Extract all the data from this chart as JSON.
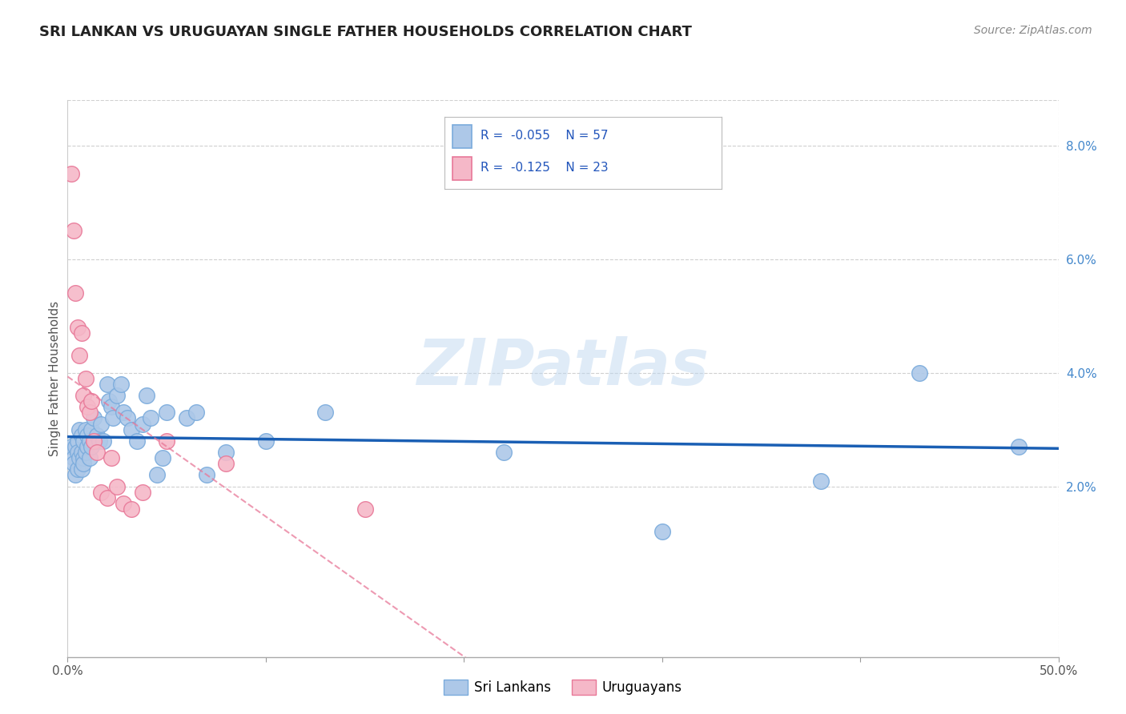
{
  "title": "SRI LANKAN VS URUGUAYAN SINGLE FATHER HOUSEHOLDS CORRELATION CHART",
  "source": "Source: ZipAtlas.com",
  "ylabel": "Single Father Households",
  "xlim": [
    0.0,
    0.5
  ],
  "ylim": [
    -0.01,
    0.088
  ],
  "x_tick_positions": [
    0.0,
    0.1,
    0.2,
    0.3,
    0.4,
    0.5
  ],
  "x_tick_labels": [
    "0.0%",
    "",
    "",
    "",
    "",
    "50.0%"
  ],
  "y_ticks_right": [
    0.02,
    0.04,
    0.06,
    0.08
  ],
  "y_tick_labels_right": [
    "2.0%",
    "4.0%",
    "6.0%",
    "8.0%"
  ],
  "sri_lankan_color": "#adc8e8",
  "sri_lankan_edge": "#7aabdc",
  "uruguayan_color": "#f5b8c8",
  "uruguayan_edge": "#e87898",
  "trend_sri_color": "#1a5fb4",
  "trend_uru_color": "#e87898",
  "watermark": "ZIPatlas",
  "legend_R_sri": "-0.055",
  "legend_N_sri": "57",
  "legend_R_uru": "-0.125",
  "legend_N_uru": "23",
  "sri_x": [
    0.002,
    0.003,
    0.003,
    0.004,
    0.004,
    0.005,
    0.005,
    0.005,
    0.006,
    0.006,
    0.007,
    0.007,
    0.007,
    0.008,
    0.008,
    0.008,
    0.009,
    0.009,
    0.01,
    0.01,
    0.011,
    0.011,
    0.012,
    0.012,
    0.013,
    0.014,
    0.015,
    0.016,
    0.017,
    0.018,
    0.02,
    0.021,
    0.022,
    0.023,
    0.025,
    0.027,
    0.028,
    0.03,
    0.032,
    0.035,
    0.038,
    0.04,
    0.042,
    0.045,
    0.048,
    0.05,
    0.06,
    0.065,
    0.07,
    0.08,
    0.1,
    0.13,
    0.22,
    0.3,
    0.38,
    0.43,
    0.48
  ],
  "sri_y": [
    0.027,
    0.025,
    0.024,
    0.027,
    0.022,
    0.028,
    0.026,
    0.023,
    0.03,
    0.025,
    0.029,
    0.026,
    0.023,
    0.028,
    0.025,
    0.024,
    0.03,
    0.026,
    0.029,
    0.027,
    0.028,
    0.025,
    0.03,
    0.027,
    0.032,
    0.028,
    0.029,
    0.028,
    0.031,
    0.028,
    0.038,
    0.035,
    0.034,
    0.032,
    0.036,
    0.038,
    0.033,
    0.032,
    0.03,
    0.028,
    0.031,
    0.036,
    0.032,
    0.022,
    0.025,
    0.033,
    0.032,
    0.033,
    0.022,
    0.026,
    0.028,
    0.033,
    0.026,
    0.012,
    0.021,
    0.04,
    0.027
  ],
  "uru_x": [
    0.002,
    0.003,
    0.004,
    0.005,
    0.006,
    0.007,
    0.008,
    0.009,
    0.01,
    0.011,
    0.012,
    0.013,
    0.015,
    0.017,
    0.02,
    0.022,
    0.025,
    0.028,
    0.032,
    0.038,
    0.05,
    0.08,
    0.15
  ],
  "uru_y": [
    0.075,
    0.065,
    0.054,
    0.048,
    0.043,
    0.047,
    0.036,
    0.039,
    0.034,
    0.033,
    0.035,
    0.028,
    0.026,
    0.019,
    0.018,
    0.025,
    0.02,
    0.017,
    0.016,
    0.019,
    0.028,
    0.024,
    0.016
  ]
}
